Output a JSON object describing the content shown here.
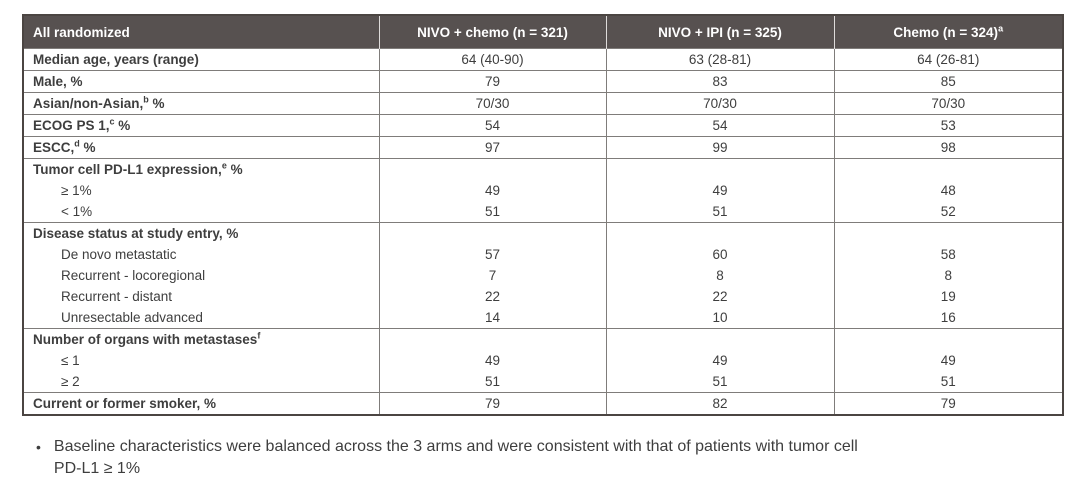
{
  "table": {
    "header": {
      "label_column": "All randomized",
      "columns": [
        {
          "text": "NIVO + chemo (n = 321)",
          "sup": ""
        },
        {
          "text": "NIVO + IPI (n = 325)",
          "sup": ""
        },
        {
          "text": "Chemo (n = 324)",
          "sup": "a"
        }
      ]
    },
    "blocks": [
      {
        "rows": [
          {
            "label": "Median age, years (range)",
            "sup": "",
            "after": "",
            "bold": true,
            "indent": false,
            "values": [
              "64 (40-90)",
              "63 (28-81)",
              "64 (26-81)"
            ]
          }
        ]
      },
      {
        "rows": [
          {
            "label": "Male, %",
            "sup": "",
            "after": "",
            "bold": true,
            "indent": false,
            "values": [
              "79",
              "83",
              "85"
            ]
          }
        ]
      },
      {
        "rows": [
          {
            "label": "Asian/non-Asian,",
            "sup": "b",
            "after": " %",
            "bold": true,
            "indent": false,
            "values": [
              "70/30",
              "70/30",
              "70/30"
            ]
          }
        ]
      },
      {
        "rows": [
          {
            "label": "ECOG PS 1,",
            "sup": "c",
            "after": " %",
            "bold": true,
            "indent": false,
            "values": [
              "54",
              "54",
              "53"
            ]
          }
        ]
      },
      {
        "rows": [
          {
            "label": "ESCC,",
            "sup": "d",
            "after": " %",
            "bold": true,
            "indent": false,
            "values": [
              "97",
              "99",
              "98"
            ]
          }
        ]
      },
      {
        "rows": [
          {
            "label": "Tumor cell PD-L1 expression,",
            "sup": "e",
            "after": " %",
            "bold": true,
            "indent": false,
            "values": [
              "",
              "",
              ""
            ]
          },
          {
            "label": "≥ 1%",
            "sup": "",
            "after": "",
            "bold": false,
            "indent": true,
            "values": [
              "49",
              "49",
              "48"
            ]
          },
          {
            "label": "< 1%",
            "sup": "",
            "after": "",
            "bold": false,
            "indent": true,
            "values": [
              "51",
              "51",
              "52"
            ]
          }
        ]
      },
      {
        "rows": [
          {
            "label": "Disease status at study entry, %",
            "sup": "",
            "after": "",
            "bold": true,
            "indent": false,
            "values": [
              "",
              "",
              ""
            ]
          },
          {
            "label": "De novo metastatic",
            "sup": "",
            "after": "",
            "bold": false,
            "indent": true,
            "values": [
              "57",
              "60",
              "58"
            ]
          },
          {
            "label": "Recurrent - locoregional",
            "sup": "",
            "after": "",
            "bold": false,
            "indent": true,
            "values": [
              "7",
              "8",
              "8"
            ]
          },
          {
            "label": "Recurrent - distant",
            "sup": "",
            "after": "",
            "bold": false,
            "indent": true,
            "values": [
              "22",
              "22",
              "19"
            ]
          },
          {
            "label": "Unresectable advanced",
            "sup": "",
            "after": "",
            "bold": false,
            "indent": true,
            "values": [
              "14",
              "10",
              "16"
            ]
          }
        ]
      },
      {
        "rows": [
          {
            "label": "Number of organs with metastases",
            "sup": "f",
            "after": "",
            "bold": true,
            "indent": false,
            "values": [
              "",
              "",
              ""
            ]
          },
          {
            "label": "≤ 1",
            "sup": "",
            "after": "",
            "bold": false,
            "indent": true,
            "values": [
              "49",
              "49",
              "49"
            ]
          },
          {
            "label": "≥ 2",
            "sup": "",
            "after": "",
            "bold": false,
            "indent": true,
            "values": [
              "51",
              "51",
              "51"
            ]
          }
        ]
      },
      {
        "rows": [
          {
            "label": "Current or former smoker, %",
            "sup": "",
            "after": "",
            "bold": true,
            "indent": false,
            "values": [
              "79",
              "82",
              "79"
            ]
          }
        ]
      }
    ]
  },
  "bullet": {
    "glyph": "•",
    "lines": [
      "Baseline characteristics were balanced across the 3 arms and were consistent with that of patients with tumor cell",
      "PD-L1 ≥ 1%"
    ]
  },
  "colors": {
    "header_bg": "#575150",
    "outer_border": "#4b4542",
    "grid_line": "#7f7c7a",
    "text": "#3e3e3e"
  }
}
